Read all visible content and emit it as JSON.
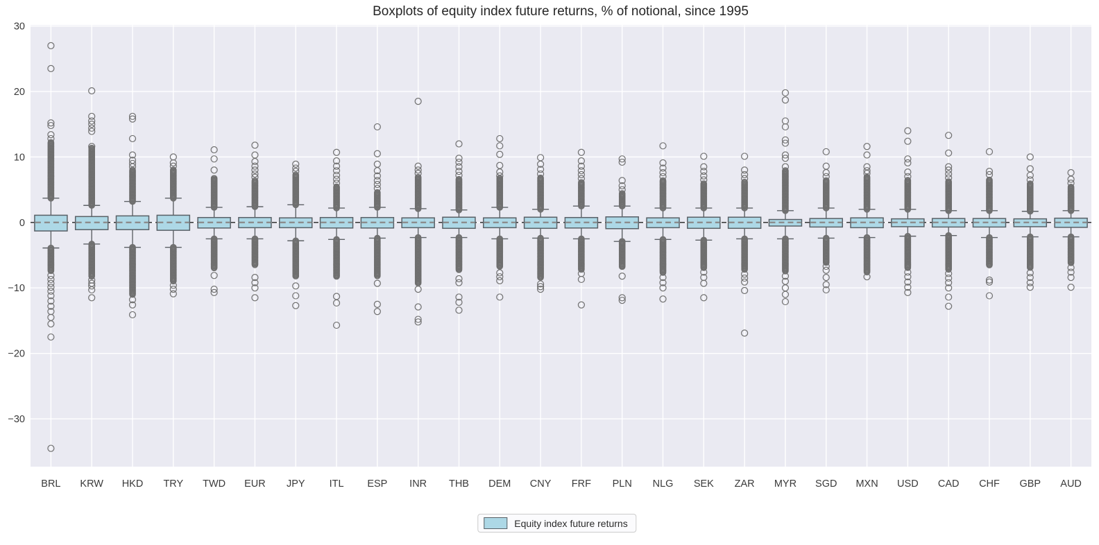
{
  "chart_data": {
    "type": "boxplot",
    "title": "Boxplots of equity index future returns, % of notional, since 1995",
    "legend_label": "Equity index future returns",
    "xlabel": "",
    "ylabel": "",
    "ylim": [
      -37.5,
      30.1
    ],
    "yticks": [
      30,
      20,
      10,
      0,
      -10,
      -20,
      -30
    ],
    "grid": "on",
    "zero_line": "dashed",
    "legend_position": "bottom-center",
    "colors": {
      "plot_background": "#eaeaf2",
      "gridline": "#ffffff",
      "box_fill": "#add8e6",
      "box_edge": "#596066",
      "whisker": "#5d6166",
      "flier": "#6f6f6f",
      "median_line": "#8c8c8c",
      "zero_line": "#1f1f1f",
      "tick_text": "#3a3a3a",
      "title_text": "#262626"
    },
    "boxes": [
      {
        "label": "BRL",
        "whisker_low": -3.9,
        "q1": -1.3,
        "median": 0.0,
        "q3": 1.1,
        "whisker_high": 3.7,
        "dense_high": [
          3.7,
          12.3
        ],
        "dense_low": [
          -3.9,
          -7.5
        ],
        "outliers_high": [
          12.8,
          13.4,
          14.8,
          15.2,
          23.5,
          27.0
        ],
        "outliers_low": [
          -8.1,
          -8.7,
          -9.3,
          -9.9,
          -10.5,
          -11.2,
          -12.0,
          -12.8,
          -13.6,
          -14.5,
          -15.5,
          -17.5,
          -34.5
        ]
      },
      {
        "label": "KRW",
        "whisker_low": -3.3,
        "q1": -1.1,
        "median": 0.0,
        "q3": 0.9,
        "whisker_high": 2.6,
        "dense_high": [
          2.6,
          11.4
        ],
        "dense_low": [
          -3.3,
          -8.3
        ],
        "outliers_high": [
          11.6,
          13.9,
          14.4,
          15.0,
          15.5,
          16.2,
          20.1
        ],
        "outliers_low": [
          -8.8,
          -9.3,
          -9.7,
          -10.3,
          -11.5
        ]
      },
      {
        "label": "HKD",
        "whisker_low": -3.8,
        "q1": -1.1,
        "median": 0.0,
        "q3": 1.0,
        "whisker_high": 3.2,
        "dense_high": [
          3.2,
          8.1
        ],
        "dense_low": [
          -3.8,
          -11.0
        ],
        "outliers_high": [
          8.5,
          9.0,
          9.5,
          10.3,
          12.8,
          15.8,
          16.2
        ],
        "outliers_low": [
          -11.8,
          -12.6,
          -14.1
        ]
      },
      {
        "label": "TRY",
        "whisker_low": -3.8,
        "q1": -1.2,
        "median": 0.0,
        "q3": 1.1,
        "whisker_high": 3.7,
        "dense_high": [
          3.7,
          8.1
        ],
        "dense_low": [
          -3.8,
          -9.0
        ],
        "outliers_high": [
          8.6,
          9.1,
          10.0
        ],
        "outliers_low": [
          -9.6,
          -10.2,
          -10.9
        ]
      },
      {
        "label": "TWD",
        "whisker_low": -2.5,
        "q1": -0.85,
        "median": 0.0,
        "q3": 0.75,
        "whisker_high": 2.3,
        "dense_high": [
          2.3,
          6.8
        ],
        "dense_low": [
          -2.5,
          -7.0
        ],
        "outliers_high": [
          8.0,
          9.7,
          11.1
        ],
        "outliers_low": [
          -8.1,
          -10.2,
          -10.7
        ]
      },
      {
        "label": "EUR",
        "whisker_low": -2.5,
        "q1": -0.8,
        "median": 0.0,
        "q3": 0.75,
        "whisker_high": 2.4,
        "dense_high": [
          2.4,
          6.4
        ],
        "dense_low": [
          -2.5,
          -6.5
        ],
        "outliers_high": [
          6.9,
          7.4,
          8.0,
          8.6,
          9.3,
          10.3,
          11.8
        ],
        "outliers_low": [
          -8.4,
          -9.2,
          -10.0,
          -11.5
        ]
      },
      {
        "label": "JPY",
        "whisker_low": -2.8,
        "q1": -0.8,
        "median": 0.0,
        "q3": 0.7,
        "whisker_high": 2.7,
        "dense_high": [
          2.7,
          7.3
        ],
        "dense_low": [
          -2.8,
          -8.3
        ],
        "outliers_high": [
          7.8,
          8.3,
          8.9
        ],
        "outliers_low": [
          -9.7,
          -11.2,
          -12.7
        ]
      },
      {
        "label": "ITL",
        "whisker_low": -2.6,
        "q1": -0.85,
        "median": 0.0,
        "q3": 0.75,
        "whisker_high": 2.2,
        "dense_high": [
          2.2,
          5.5
        ],
        "dense_low": [
          -2.6,
          -8.3
        ],
        "outliers_high": [
          6.0,
          6.6,
          7.2,
          7.9,
          8.6,
          9.4,
          10.7
        ],
        "outliers_low": [
          -11.3,
          -12.3,
          -15.7
        ]
      },
      {
        "label": "ESP",
        "whisker_low": -2.4,
        "q1": -0.85,
        "median": 0.0,
        "q3": 0.75,
        "whisker_high": 2.3,
        "dense_high": [
          2.3,
          4.7
        ],
        "dense_low": [
          -2.4,
          -8.2
        ],
        "outliers_high": [
          5.2,
          5.8,
          6.4,
          7.1,
          7.9,
          8.9,
          10.5,
          14.6
        ],
        "outliers_low": [
          -9.3,
          -12.5,
          -13.6
        ]
      },
      {
        "label": "INR",
        "whisker_low": -2.3,
        "q1": -0.8,
        "median": 0.0,
        "q3": 0.7,
        "whisker_high": 2.1,
        "dense_high": [
          2.1,
          7.0
        ],
        "dense_low": [
          -2.3,
          -9.3
        ],
        "outliers_high": [
          7.5,
          8.0,
          8.6,
          18.5
        ],
        "outliers_low": [
          -10.2,
          -12.9,
          -14.8,
          -15.2
        ]
      },
      {
        "label": "THB",
        "whisker_low": -2.3,
        "q1": -0.9,
        "median": 0.0,
        "q3": 0.8,
        "whisker_high": 1.9,
        "dense_high": [
          1.9,
          6.6
        ],
        "dense_low": [
          -2.3,
          -7.3
        ],
        "outliers_high": [
          7.2,
          7.8,
          8.5,
          9.2,
          9.8,
          12.0
        ],
        "outliers_low": [
          -8.6,
          -9.2,
          -11.4,
          -12.2,
          -13.4
        ]
      },
      {
        "label": "DEM",
        "whisker_low": -2.5,
        "q1": -0.8,
        "median": 0.0,
        "q3": 0.7,
        "whisker_high": 2.3,
        "dense_high": [
          2.3,
          6.8
        ],
        "dense_low": [
          -2.5,
          -6.8
        ],
        "outliers_high": [
          7.1,
          7.7,
          8.7,
          10.4,
          11.7,
          12.8
        ],
        "outliers_low": [
          -7.7,
          -8.3,
          -8.9,
          -11.4
        ]
      },
      {
        "label": "CNY",
        "whisker_low": -2.4,
        "q1": -0.9,
        "median": 0.0,
        "q3": 0.8,
        "whisker_high": 2.0,
        "dense_high": [
          2.0,
          6.9
        ],
        "dense_low": [
          -2.4,
          -8.5
        ],
        "outliers_high": [
          7.4,
          8.1,
          8.9,
          9.9
        ],
        "outliers_low": [
          -9.4,
          -9.8,
          -10.2
        ]
      },
      {
        "label": "FRF",
        "whisker_low": -2.5,
        "q1": -0.85,
        "median": 0.0,
        "q3": 0.75,
        "whisker_high": 2.5,
        "dense_high": [
          2.5,
          6.2
        ],
        "dense_low": [
          -2.5,
          -7.3
        ],
        "outliers_high": [
          6.7,
          7.3,
          7.9,
          8.6,
          9.4,
          10.7
        ],
        "outliers_low": [
          -7.8,
          -8.7,
          -12.6
        ]
      },
      {
        "label": "PLN",
        "whisker_low": -2.9,
        "q1": -0.95,
        "median": 0.0,
        "q3": 0.85,
        "whisker_high": 2.5,
        "dense_high": [
          2.5,
          4.5
        ],
        "dense_low": [
          -2.9,
          -6.8
        ],
        "outliers_high": [
          5.0,
          5.6,
          6.4,
          9.2,
          9.7
        ],
        "outliers_low": [
          -8.2,
          -11.5,
          -11.9
        ]
      },
      {
        "label": "NLG",
        "whisker_low": -2.6,
        "q1": -0.8,
        "median": 0.0,
        "q3": 0.7,
        "whisker_high": 2.2,
        "dense_high": [
          2.2,
          6.5
        ],
        "dense_low": [
          -2.6,
          -7.7
        ],
        "outliers_high": [
          7.0,
          7.6,
          8.3,
          9.1,
          11.7
        ],
        "outliers_low": [
          -8.4,
          -9.2,
          -10.0,
          -11.7
        ]
      },
      {
        "label": "SEK",
        "whisker_low": -2.7,
        "q1": -0.9,
        "median": 0.0,
        "q3": 0.8,
        "whisker_high": 2.2,
        "dense_high": [
          2.2,
          6.0
        ],
        "dense_low": [
          -2.7,
          -7.0
        ],
        "outliers_high": [
          6.5,
          7.1,
          7.8,
          8.5,
          10.1
        ],
        "outliers_low": [
          -7.6,
          -8.4,
          -9.3,
          -11.5
        ]
      },
      {
        "label": "ZAR",
        "whisker_low": -2.5,
        "q1": -0.9,
        "median": 0.0,
        "q3": 0.8,
        "whisker_high": 2.2,
        "dense_high": [
          2.2,
          6.2
        ],
        "dense_low": [
          -2.5,
          -7.2
        ],
        "outliers_high": [
          6.7,
          7.3,
          8.0,
          10.1
        ],
        "outliers_low": [
          -7.9,
          -8.5,
          -9.1,
          -10.4,
          -16.9
        ]
      },
      {
        "label": "MYR",
        "whisker_low": -2.5,
        "q1": -0.55,
        "median": 0.0,
        "q3": 0.45,
        "whisker_high": 1.8,
        "dense_high": [
          1.8,
          8.0
        ],
        "dense_low": [
          -2.5,
          -7.5
        ],
        "outliers_high": [
          8.5,
          9.8,
          10.3,
          12.1,
          12.6,
          14.6,
          15.5,
          18.7,
          19.8
        ],
        "outliers_low": [
          -8.2,
          -9.0,
          -10.0,
          -11.0,
          -12.1
        ]
      },
      {
        "label": "SGD",
        "whisker_low": -2.4,
        "q1": -0.7,
        "median": 0.0,
        "q3": 0.6,
        "whisker_high": 2.2,
        "dense_high": [
          2.2,
          6.5
        ],
        "dense_low": [
          -2.4,
          -6.2
        ],
        "outliers_high": [
          7.0,
          7.6,
          8.6,
          10.8
        ],
        "outliers_low": [
          -6.7,
          -7.3,
          -8.4,
          -9.5,
          -10.3
        ]
      },
      {
        "label": "MXN",
        "whisker_low": -2.3,
        "q1": -0.8,
        "median": 0.0,
        "q3": 0.7,
        "whisker_high": 2.0,
        "dense_high": [
          2.0,
          7.0
        ],
        "dense_low": [
          -2.3,
          -7.7
        ],
        "outliers_high": [
          7.5,
          7.9,
          8.5,
          10.3,
          11.6
        ],
        "outliers_low": [
          -8.3
        ]
      },
      {
        "label": "USD",
        "whisker_low": -2.1,
        "q1": -0.65,
        "median": 0.0,
        "q3": 0.55,
        "whisker_high": 2.0,
        "dense_high": [
          2.0,
          6.5
        ],
        "dense_low": [
          -2.1,
          -7.0
        ],
        "outliers_high": [
          7.0,
          7.7,
          9.1,
          9.7,
          12.4,
          14.0
        ],
        "outliers_low": [
          -7.6,
          -8.3,
          -9.1,
          -9.9,
          -10.7
        ]
      },
      {
        "label": "CAD",
        "whisker_low": -2.0,
        "q1": -0.7,
        "median": 0.0,
        "q3": 0.6,
        "whisker_high": 1.8,
        "dense_high": [
          1.8,
          6.3
        ],
        "dense_low": [
          -2.0,
          -7.2
        ],
        "outliers_high": [
          6.8,
          7.4,
          8.0,
          8.5,
          10.6,
          13.3
        ],
        "outliers_low": [
          -7.8,
          -8.5,
          -9.2,
          -10.0,
          -11.4,
          -12.8
        ]
      },
      {
        "label": "CHF",
        "whisker_low": -2.3,
        "q1": -0.7,
        "median": 0.0,
        "q3": 0.6,
        "whisker_high": 1.8,
        "dense_high": [
          1.8,
          6.5
        ],
        "dense_low": [
          -2.3,
          -6.6
        ],
        "outliers_high": [
          7.3,
          7.8,
          10.8
        ],
        "outliers_low": [
          -8.8,
          -9.1,
          -11.2
        ]
      },
      {
        "label": "GBP",
        "whisker_low": -2.2,
        "q1": -0.65,
        "median": 0.0,
        "q3": 0.55,
        "whisker_high": 1.7,
        "dense_high": [
          1.7,
          6.0
        ],
        "dense_low": [
          -2.2,
          -7.0
        ],
        "outliers_high": [
          6.5,
          7.2,
          8.2,
          10.0
        ],
        "outliers_low": [
          -7.7,
          -8.4,
          -9.2,
          -9.9
        ]
      },
      {
        "label": "AUD",
        "whisker_low": -2.2,
        "q1": -0.75,
        "median": 0.0,
        "q3": 0.65,
        "whisker_high": 1.8,
        "dense_high": [
          1.8,
          5.5
        ],
        "dense_low": [
          -2.2,
          -6.2
        ],
        "outliers_high": [
          6.0,
          6.6,
          7.6
        ],
        "outliers_low": [
          -6.9,
          -7.6,
          -8.4,
          -9.9
        ]
      }
    ]
  }
}
